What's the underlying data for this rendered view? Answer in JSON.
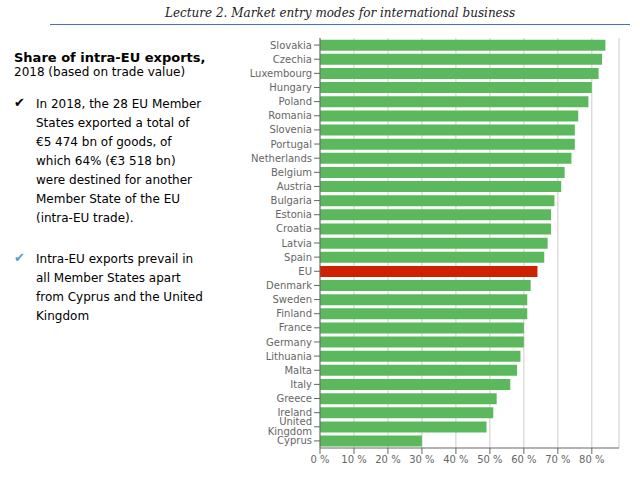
{
  "chart_data": {
    "type": "bar",
    "title": "Lecture 2. Market entry modes for international business",
    "orientation": "horizontal",
    "categories": [
      "Slovakia",
      "Czechia",
      "Luxembourg",
      "Hungary",
      "Poland",
      "Romania",
      "Slovenia",
      "Portugal",
      "Netherlands",
      "Belgium",
      "Austria",
      "Bulgaria",
      "Estonia",
      "Croatia",
      "Latvia",
      "Spain",
      "EU",
      "Denmark",
      "Sweden",
      "Finland",
      "France",
      "Germany",
      "Lithuania",
      "Malta",
      "Italy",
      "Greece",
      "Ireland",
      "United Kingdom",
      "Cyprus"
    ],
    "values": [
      84,
      83,
      82,
      80,
      79,
      76,
      75,
      75,
      74,
      72,
      71,
      69,
      68,
      68,
      67,
      66,
      64,
      62,
      61,
      61,
      60,
      60,
      59,
      58,
      56,
      52,
      51,
      49,
      30
    ],
    "colors": [
      "#5cb85c",
      "#5cb85c",
      "#5cb85c",
      "#5cb85c",
      "#5cb85c",
      "#5cb85c",
      "#5cb85c",
      "#5cb85c",
      "#5cb85c",
      "#5cb85c",
      "#5cb85c",
      "#5cb85c",
      "#5cb85c",
      "#5cb85c",
      "#5cb85c",
      "#5cb85c",
      "#cc2200",
      "#5cb85c",
      "#5cb85c",
      "#5cb85c",
      "#5cb85c",
      "#5cb85c",
      "#5cb85c",
      "#5cb85c",
      "#5cb85c",
      "#5cb85c",
      "#5cb85c",
      "#5cb85c",
      "#5cb85c"
    ],
    "xlim": [
      0,
      88
    ],
    "xticks": [
      {
        "value": 0,
        "label": "0 %"
      },
      {
        "value": 10,
        "label": "10 %"
      },
      {
        "value": 20,
        "label": "20 %"
      },
      {
        "value": 30,
        "label": "30 %"
      },
      {
        "value": 40,
        "label": "40 %"
      },
      {
        "value": 50,
        "label": "50 %"
      },
      {
        "value": 60,
        "label": "60 %"
      },
      {
        "value": 70,
        "label": "70 %"
      },
      {
        "value": 80,
        "label": "80 %"
      }
    ],
    "grid": true,
    "annotations": [
      "Share of intra-EU exports,",
      "2018 (based on trade value)",
      "✔",
      "In 2018, the 28 EU Member",
      "States exported a total of",
      "€5 474 bn of goods, of",
      "which 64% (€3 518 bn)",
      "were destined for another",
      "Member State of the EU",
      "(intra-EU trade).",
      "✔",
      "Intra-EU exports prevail in",
      "all Member States apart",
      "from Cyprus and the United",
      "Kingdom"
    ]
  }
}
